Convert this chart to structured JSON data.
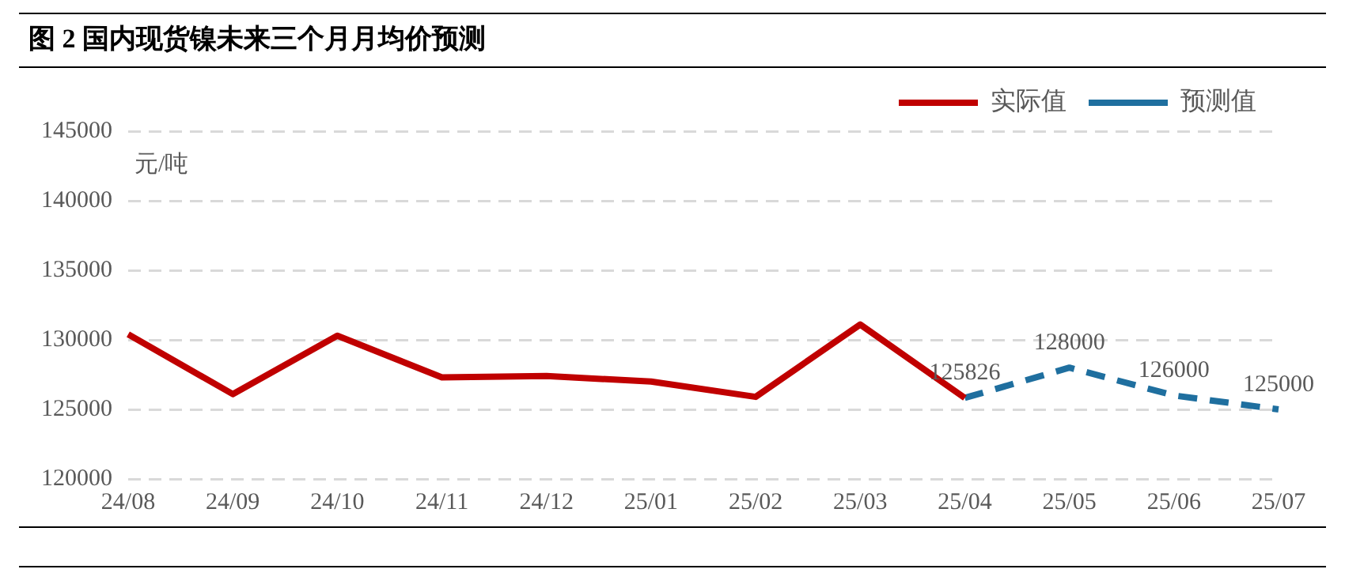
{
  "chart_data": {
    "type": "line",
    "title": "图 2 国内现货镍未来三个月月均价预测",
    "ylabel": "元/吨",
    "categories": [
      "24/08",
      "24/09",
      "24/10",
      "24/11",
      "24/12",
      "25/01",
      "25/02",
      "25/03",
      "25/04",
      "25/05",
      "25/06",
      "25/07"
    ],
    "series": [
      {
        "name": "实际值",
        "color": "#c00000",
        "line_style": "solid",
        "values": [
          130400,
          126100,
          130300,
          127300,
          127400,
          127000,
          125900,
          131100,
          125826,
          null,
          null,
          null
        ]
      },
      {
        "name": "预测值",
        "color": "#1f6f9f",
        "line_style": "dashed",
        "values": [
          null,
          null,
          null,
          null,
          null,
          null,
          null,
          null,
          125826,
          128000,
          126000,
          125000
        ],
        "value_labels": [
          null,
          null,
          null,
          null,
          null,
          null,
          null,
          null,
          "125826",
          "128000",
          "126000",
          "125000"
        ]
      }
    ],
    "ylim": [
      120000,
      145000
    ],
    "yticks": [
      120000,
      125000,
      130000,
      135000,
      140000,
      145000
    ],
    "grid": "y",
    "legend": "top right",
    "marker": "none"
  }
}
